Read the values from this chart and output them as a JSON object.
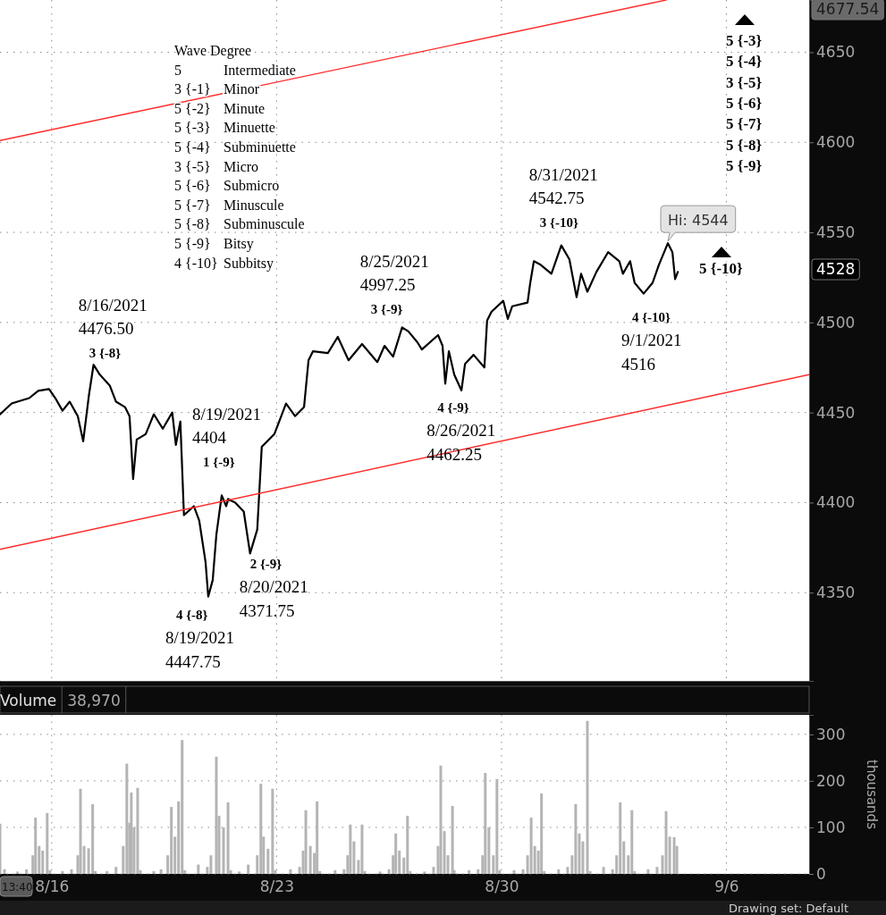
{
  "chart_data": [
    {
      "type": "line",
      "xlim": [
        "2021-08-14T09:22",
        "2021-09-08T13:49"
      ],
      "xticks": [
        {
          "value": "2021-08-16",
          "label": null
        },
        {
          "value": "2021-08-23",
          "label": null
        },
        {
          "value": "2021-08-30",
          "label": null
        },
        {
          "value": "2021-09-06",
          "label": null
        }
      ],
      "ylim": [
        4301,
        4679
      ],
      "yticks": [
        4350,
        4400,
        4450,
        4500,
        4550,
        4600,
        4650
      ],
      "grid": true,
      "tick_labels": "y",
      "series": [
        {
          "color": "#000000",
          "x": [
            "2021-08-14T09:22",
            "2021-08-14T18:06",
            "2021-08-15T07:12",
            "2021-08-15T13:55",
            "2021-08-15T21:59",
            "2021-08-16T02:41",
            "2021-08-16T08:04",
            "2021-08-16T13:26",
            "2021-08-16T19:29",
            "2021-08-16T23:31",
            "2021-08-17T03:53",
            "2021-08-17T07:15",
            "2021-08-17T11:57",
            "2021-08-17T19:21",
            "2021-08-18T00:03",
            "2021-08-18T06:46",
            "2021-08-18T10:08",
            "2021-08-18T12:49",
            "2021-08-18T15:30",
            "2021-08-18T22:13",
            "2021-08-19T04:16",
            "2021-08-19T10:59",
            "2021-08-19T18:03",
            "2021-08-19T20:44",
            "2021-08-20T00:06",
            "2021-08-20T02:47",
            "2021-08-20T10:11",
            "2021-08-20T14:12",
            "2021-08-20T18:55",
            "2021-08-20T20:56",
            "2021-08-21T00:17",
            "2021-08-21T02:59",
            "2021-08-21T07:00",
            "2021-08-21T10:22",
            "2021-08-21T11:43",
            "2021-08-21T17:05",
            "2021-08-21T23:28",
            "2021-08-22T04:11",
            "2021-08-22T09:33",
            "2021-08-22T12:55",
            "2021-08-22T22:19",
            "2021-08-23T07:03",
            "2021-08-23T13:47",
            "2021-08-23T20:30",
            "2021-08-23T23:51",
            "2021-08-24T03:13",
            "2021-08-24T14:18",
            "2021-08-24T21:42",
            "2021-08-25T05:46",
            "2021-08-25T15:50",
            "2021-08-26T03:16",
            "2021-08-26T08:38",
            "2021-08-26T15:01",
            "2021-08-26T21:45",
            "2021-08-27T02:27",
            "2021-08-27T09:10",
            "2021-08-27T12:32",
            "2021-08-28T00:37",
            "2021-08-28T03:59",
            "2021-08-28T06:00",
            "2021-08-28T08:41",
            "2021-08-28T12:43",
            "2021-08-28T18:06",
            "2021-08-28T20:47",
            "2021-08-29T03:10",
            "2021-08-29T11:14",
            "2021-08-29T13:15",
            "2021-08-29T16:36",
            "2021-08-30T01:21",
            "2021-08-30T04:42",
            "2021-08-30T08:04",
            "2021-08-30T19:29",
            "2021-08-30T21:30",
            "2021-08-31T00:12",
            "2021-08-31T05:14",
            "2021-08-31T13:18",
            "2021-08-31T20:41",
            "2021-09-01T02:44",
            "2021-09-01T08:07",
            "2021-09-01T11:28",
            "2021-09-01T16:11",
            "2021-09-01T22:54",
            "2021-09-02T07:38",
            "2021-09-02T16:02",
            "2021-09-02T18:43",
            "2021-09-03T00:06",
            "2021-09-03T03:27",
            "2021-09-03T10:11",
            "2021-09-03T16:54",
            "2021-09-03T21:36",
            "2021-09-04T04:19",
            "2021-09-04T07:41",
            "2021-09-04T09:42",
            "2021-09-04T11:43"
          ],
          "values": [
            4449,
            4455,
            4458,
            4462,
            4463,
            4458,
            4451,
            4456,
            4448,
            4434,
            4460,
            4476.5,
            4471,
            4465,
            4456,
            4453,
            4448,
            4413,
            4435,
            4438,
            4449,
            4441,
            4450,
            4432,
            4445,
            4393,
            4398,
            4390,
            4367,
            4347.75,
            4357,
            4382,
            4404,
            4398,
            4402,
            4400,
            4395,
            4371.75,
            4385,
            4431,
            4438,
            4455,
            4448,
            4453,
            4479,
            4484,
            4483,
            4492,
            4479,
            4488,
            4478,
            4487,
            4481,
            4497.25,
            4495,
            4489,
            4485,
            4493,
            4487,
            4466,
            4484,
            4471,
            4462.25,
            4477,
            4482,
            4475,
            4501,
            4506,
            4512,
            4502,
            4509,
            4511,
            4522,
            4534,
            4532,
            4527,
            4542.75,
            4535,
            4514,
            4527,
            4517,
            4528,
            4539,
            4534,
            4527,
            4534,
            4522,
            4516,
            4522,
            4532,
            4544,
            4539,
            4524,
            4528
          ]
        },
        {
          "type": "line",
          "color": "#ff2a2a",
          "x": [
            "2021-08-14T09:22",
            "2021-09-04T02:59"
          ],
          "values": [
            4601,
            4679
          ]
        },
        {
          "type": "line",
          "color": "#ff2a2a",
          "x": [
            "2021-08-14T09:22",
            "2021-09-08T13:49"
          ],
          "values": [
            4374,
            4471
          ]
        }
      ],
      "annotations": [
        "Wave Degree\n5\tIntermediate\n3 {-1}\tMinor\n5 {-2}\tMinute\n5 {-3}\tMinuette\n5 {-4}\tSubminuette\n3 {-5}\tMicro\n5 {-6}\tSubmicro\n5 {-7}\tMinuscule\n5 {-8}\tSubminuscule\n5 {-9}\tBitsy\n4 {-10}\tSubbitsy",
        "5 {-3}\n5 {-4}\n3 {-5}\n5 {-6}\n5 {-7}\n5 {-8}\n5 {-9}",
        "5 {-10}",
        {
          "text": "8/16/2021\n4476.50\n3 {-8}",
          "x": "2021-08-17T07:15",
          "y": 4476.5
        },
        {
          "text": "4 {-8}\n8/19/2021\n4447.75",
          "x": "2021-08-20T20:56",
          "y": 4347.75
        },
        {
          "text": "8/19/2021\n4404\n1 {-9}",
          "x": "2021-08-21T07:00",
          "y": 4404
        },
        {
          "text": "2 {-9}\n8/20/2021\n4371.75",
          "x": "2021-08-22T04:11",
          "y": 4371.75
        },
        {
          "text": "8/25/2021\n4997.25\n3 {-9}",
          "x": "2021-08-26T21:45",
          "y": 4497.25
        },
        {
          "text": "4 {-9}\n8/26/2021\n4462.25",
          "x": "2021-08-28T18:06",
          "y": 4462.25
        },
        {
          "text": "8/31/2021\n4542.75\n3 {-10}",
          "x": "2021-08-31T20:41",
          "y": 4542.75
        },
        {
          "text": "4 {-10}\n9/1/2021\n4516",
          "x": "2021-09-03T10:11",
          "y": 4516
        },
        {
          "text": "Hi: 4544",
          "x": "2021-09-04T04:19",
          "y": 4544
        },
        "4677.54",
        "4528"
      ]
    },
    {
      "type": "bar",
      "title": "Volume",
      "subtitle": "38,970",
      "ylabel": "thousands",
      "xlim": [
        "2021-08-14T09:22",
        "2021-09-08T13:49"
      ],
      "xticks": [
        {
          "value": "2021-08-16",
          "label": "8/16"
        },
        {
          "value": "2021-08-23",
          "label": "8/23"
        },
        {
          "value": "2021-08-30",
          "label": "8/30"
        },
        {
          "value": "2021-09-06",
          "label": "9/6"
        }
      ],
      "ylim": [
        0,
        342
      ],
      "yticks": [
        0,
        100,
        200,
        300
      ],
      "grid": true,
      "color": "#b4b4b4",
      "x": [
        "2021-08-14T09:22",
        "2021-08-14T12:43",
        "2021-08-14T22:28",
        "2021-08-15T05:11",
        "2021-08-15T09:53",
        "2021-08-15T11:54",
        "2021-08-15T14:36",
        "2021-08-15T17:17",
        "2021-08-15T20:38",
        "2021-08-15T22:39",
        "2021-08-16T08:04",
        "2021-08-16T14:47",
        "2021-08-16T19:29",
        "2021-08-16T21:30",
        "2021-08-17T00:12",
        "2021-08-17T03:33",
        "2021-08-17T06:35",
        "2021-08-17T08:36",
        "2021-08-17T17:20",
        "2021-08-18T00:03",
        "2021-08-18T05:25",
        "2021-08-18T08:07",
        "2021-08-18T10:08",
        "2021-08-18T11:28",
        "2021-08-18T13:29",
        "2021-08-18T16:11",
        "2021-08-18T18:12",
        "2021-08-19T04:16",
        "2021-08-19T09:39",
        "2021-08-19T14:41",
        "2021-08-19T17:23",
        "2021-08-19T20:04",
        "2021-08-19T22:45",
        "2021-08-20T01:26",
        "2021-08-20T03:27",
        "2021-08-20T13:32",
        "2021-08-20T20:15",
        "2021-08-20T22:57",
        "2021-08-21T02:59",
        "2021-08-21T05:00",
        "2021-08-21T08:21",
        "2021-08-21T11:43",
        "2021-08-21T13:44",
        "2021-08-21T20:07",
        "2021-08-22T02:50",
        "2021-08-22T09:33",
        "2021-08-22T12:14",
        "2021-08-22T14:15",
        "2021-08-22T17:37",
        "2021-08-22T20:59",
        "2021-08-22T23:00",
        "2021-08-23T10:25",
        "2021-08-23T17:08",
        "2021-08-23T19:49",
        "2021-08-23T21:50",
        "2021-08-24T01:12",
        "2021-08-24T04:13",
        "2021-08-24T06:14",
        "2021-08-24T08:15",
        "2021-08-24T19:41",
        "2021-08-25T02:24",
        "2021-08-25T05:05",
        "2021-08-25T07:06",
        "2021-08-25T09:48",
        "2021-08-25T13:09",
        "2021-08-25T15:50",
        "2021-08-25T17:51",
        "2021-08-26T05:17",
        "2021-08-26T12:00",
        "2021-08-26T15:01",
        "2021-08-26T17:02",
        "2021-08-26T19:44",
        "2021-08-26T23:05",
        "2021-08-27T01:47",
        "2021-08-27T03:48",
        "2021-08-27T14:33",
        "2021-08-27T21:16",
        "2021-08-28T00:37",
        "2021-08-28T02:38",
        "2021-08-28T05:20",
        "2021-08-28T08:01",
        "2021-08-28T11:23",
        "2021-08-28T12:43",
        "2021-08-28T23:48",
        "2021-08-29T06:32",
        "2021-08-29T09:53",
        "2021-08-29T11:54",
        "2021-08-29T14:36",
        "2021-08-29T17:57",
        "2021-08-29T20:38",
        "2021-08-29T22:39",
        "2021-08-30T09:24",
        "2021-08-30T16:08",
        "2021-08-30T19:29",
        "2021-08-30T22:10",
        "2021-08-31T00:52",
        "2021-08-31T03:33",
        "2021-08-31T05:54",
        "2021-08-31T07:55",
        "2021-08-31T18:40",
        "2021-09-01T01:24",
        "2021-09-01T04:45",
        "2021-09-01T07:26",
        "2021-09-01T10:08",
        "2021-09-01T12:49",
        "2021-09-01T16:11",
        "2021-09-01T18:12",
        "2021-09-02T04:16",
        "2021-09-02T11:00",
        "2021-09-02T14:01",
        "2021-09-02T16:42",
        "2021-09-02T19:24",
        "2021-09-02T22:45",
        "2021-09-03T01:26",
        "2021-09-03T03:27",
        "2021-09-03T13:32",
        "2021-09-03T20:15",
        "2021-09-04T00:17",
        "2021-09-04T02:59",
        "2021-09-04T05:40",
        "2021-09-04T09:01",
        "2021-09-04T11:02"
      ],
      "values": [
        108,
        10,
        5,
        10,
        40,
        121,
        60,
        50,
        131,
        8,
        6,
        10,
        40,
        183,
        60,
        55,
        150,
        6,
        6,
        15,
        60,
        237,
        110,
        175,
        100,
        185,
        8,
        6,
        10,
        40,
        144,
        80,
        156,
        288,
        8,
        20,
        15,
        40,
        252,
        125,
        100,
        154,
        8,
        5,
        20,
        40,
        194,
        80,
        54,
        183,
        8,
        10,
        15,
        50,
        137,
        60,
        45,
        156,
        6,
        8,
        10,
        40,
        106,
        70,
        30,
        106,
        6,
        5,
        10,
        40,
        87,
        50,
        35,
        125,
        6,
        5,
        15,
        60,
        233,
        92,
        40,
        146,
        8,
        8,
        10,
        40,
        217,
        100,
        40,
        204,
        8,
        8,
        10,
        40,
        121,
        60,
        50,
        173,
        6,
        10,
        15,
        40,
        150,
        87,
        70,
        329,
        6,
        15,
        10,
        40,
        154,
        70,
        40,
        137,
        6,
        10,
        15,
        40,
        135,
        80,
        79,
        60
      ],
      "annotations": [
        "13:40",
        "Drawing set: Default"
      ]
    }
  ]
}
